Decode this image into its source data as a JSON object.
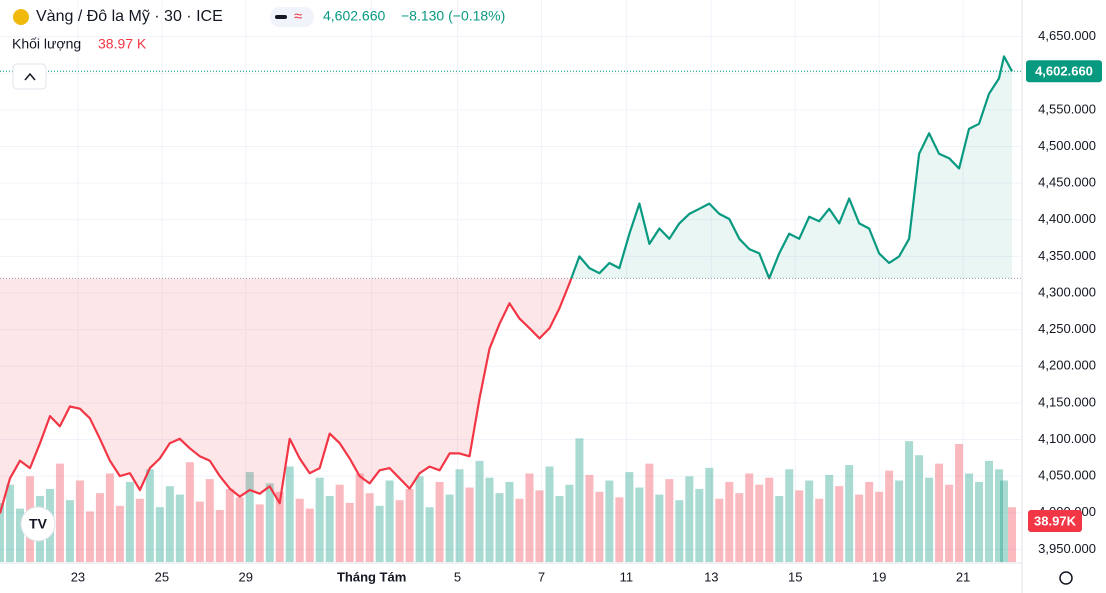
{
  "chart_data": {
    "type": "line",
    "title": "Vàng / Đô la Mỹ · 30 · ICE",
    "last_price": "4,602.660",
    "change": "−8.130 (−0.18%)",
    "volume_label": "Khối lượng",
    "volume_last": "38.97 K",
    "price_tag": "4,602.660",
    "volume_tag": "38.97K",
    "baseline": 4320,
    "up_color": "#089981",
    "down_color": "#f23645",
    "grid": true,
    "x": [
      0,
      1,
      2,
      3,
      4,
      5,
      6,
      7,
      8,
      9,
      10,
      11,
      12,
      13,
      14,
      15,
      16,
      17,
      18,
      19,
      20,
      21,
      22,
      23,
      24,
      25,
      26,
      27,
      28,
      29,
      30,
      31,
      32,
      33,
      34,
      35,
      36,
      37,
      38,
      39,
      40,
      41,
      42,
      43,
      44,
      45,
      46,
      47,
      48,
      49,
      50,
      51,
      52,
      53,
      54,
      55,
      56,
      57,
      58,
      59,
      60,
      61,
      62,
      63,
      64,
      65,
      66,
      67,
      68,
      69,
      70,
      71,
      72,
      73,
      74,
      75,
      76,
      77,
      78,
      79,
      80,
      81,
      82,
      83,
      84,
      85,
      86,
      87,
      88,
      89,
      90,
      91,
      92,
      93,
      94,
      95,
      96,
      97,
      98,
      99,
      100,
      100.5,
      101.3
    ],
    "series": [
      {
        "name": "Giá",
        "values": [
          3999,
          4047,
          4071,
          4061,
          4095,
          4132,
          4118,
          4145,
          4142,
          4129,
          4101,
          4071,
          4050,
          4054,
          4031,
          4061,
          4074,
          4095,
          4101,
          4088,
          4077,
          4071,
          4050,
          4033,
          4022,
          4031,
          4026,
          4036,
          4013,
          4101,
          4074,
          4054,
          4061,
          4108,
          4095,
          4074,
          4050,
          4040,
          4058,
          4061,
          4047,
          4033,
          4054,
          4063,
          4058,
          4081,
          4081,
          4077,
          4156,
          4224,
          4258,
          4286,
          4265,
          4252,
          4238,
          4252,
          4279,
          4313,
          4350,
          4334,
          4327,
          4341,
          4334,
          4381,
          4422,
          4367,
          4388,
          4374,
          4395,
          4408,
          4415,
          4422,
          4408,
          4401,
          4374,
          4360,
          4354,
          4320,
          4354,
          4381,
          4374,
          4404,
          4398,
          4415,
          4395,
          4429,
          4395,
          4388,
          4354,
          4341,
          4350,
          4374,
          4490,
          4518,
          4490,
          4484,
          4470,
          4524,
          4531,
          4572,
          4593,
          4623,
          4602.66
        ]
      },
      {
        "name": "Khối lượng",
        "axis": "y2",
        "values": [
          42,
          55,
          38,
          61,
          47,
          52,
          70,
          44,
          58,
          36,
          49,
          63,
          40,
          57,
          45,
          66,
          39,
          54,
          48,
          71,
          43,
          59,
          37,
          52,
          46,
          64,
          41,
          56,
          50,
          68,
          45,
          38,
          60,
          47,
          55,
          42,
          63,
          49,
          40,
          58,
          44,
          52,
          61,
          39,
          57,
          48,
          66,
          53,
          72,
          60,
          49,
          57,
          45,
          63,
          51,
          68,
          47,
          55,
          88,
          62,
          50,
          58,
          46,
          64,
          53,
          70,
          48,
          59,
          44,
          61,
          52,
          67,
          45,
          57,
          49,
          63,
          55,
          60,
          47,
          66,
          51,
          58,
          45,
          62,
          54,
          69,
          48,
          57,
          50,
          65,
          58,
          86,
          76,
          60,
          70,
          55,
          84,
          63,
          57,
          72,
          66,
          58,
          38.97
        ]
      }
    ],
    "xlim": [
      0,
      101.6
    ],
    "xticks": [
      {
        "value": 7.8,
        "label": "23"
      },
      {
        "value": 16.2,
        "label": "25"
      },
      {
        "value": 24.6,
        "label": "29"
      },
      {
        "value": 37.2,
        "label": "Tháng Tám"
      },
      {
        "value": 45.8,
        "label": "5"
      },
      {
        "value": 54.2,
        "label": "7"
      },
      {
        "value": 62.7,
        "label": "11"
      },
      {
        "value": 71.2,
        "label": "13"
      },
      {
        "value": 79.6,
        "label": "15"
      },
      {
        "value": 88.0,
        "label": "19"
      },
      {
        "value": 96.4,
        "label": "21"
      }
    ],
    "ylim": [
      3900,
      4700
    ],
    "yticks": [
      {
        "value": 3950,
        "label": "3,950.000"
      },
      {
        "value": 4000,
        "label": "4,000.000"
      },
      {
        "value": 4050,
        "label": "4,050.000"
      },
      {
        "value": 4100,
        "label": "4,100.000"
      },
      {
        "value": 4150,
        "label": "4,150.000"
      },
      {
        "value": 4200,
        "label": "4,200.000"
      },
      {
        "value": 4250,
        "label": "4,250.000"
      },
      {
        "value": 4300,
        "label": "4,300.000"
      },
      {
        "value": 4350,
        "label": "4,350.000"
      },
      {
        "value": 4400,
        "label": "4,400.000"
      },
      {
        "value": 4450,
        "label": "4,450.000"
      },
      {
        "value": 4500,
        "label": "4,500.000"
      },
      {
        "value": 4550,
        "label": "4,550.000"
      },
      {
        "value": 4600,
        "label": "4,600.000"
      },
      {
        "value": 4650,
        "label": "4,650.000"
      }
    ],
    "y2lim": [
      0,
      400
    ]
  }
}
